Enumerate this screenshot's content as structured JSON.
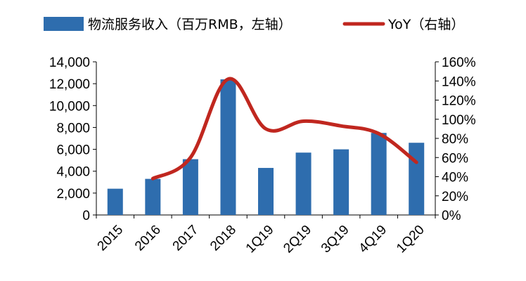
{
  "chart_data": {
    "type": "bar+line",
    "categories": [
      "2015",
      "2016",
      "2017",
      "2018",
      "1Q19",
      "2Q19",
      "3Q19",
      "4Q19",
      "1Q20"
    ],
    "series": [
      {
        "name": "物流服务收入（百万RMB，左轴）",
        "type": "bar",
        "axis": "left",
        "color": "#2E6DAE",
        "values": [
          2400,
          3300,
          5100,
          12400,
          4300,
          5700,
          6000,
          7500,
          6600
        ]
      },
      {
        "name": "YoY（右轴）",
        "type": "line",
        "axis": "right",
        "color": "#C0271F",
        "values": [
          null,
          38,
          60,
          142,
          90,
          98,
          93,
          85,
          55
        ]
      }
    ],
    "left_axis": {
      "range": [
        0,
        14000
      ],
      "ticks": [
        "0",
        "2,000",
        "4,000",
        "6,000",
        "8,000",
        "10,000",
        "12,000",
        "14,000"
      ]
    },
    "right_axis": {
      "range": [
        0,
        160
      ],
      "ticks": [
        "0%",
        "20%",
        "40%",
        "60%",
        "80%",
        "100%",
        "120%",
        "140%",
        "160%"
      ]
    },
    "legend_position": "top",
    "grid": false
  }
}
